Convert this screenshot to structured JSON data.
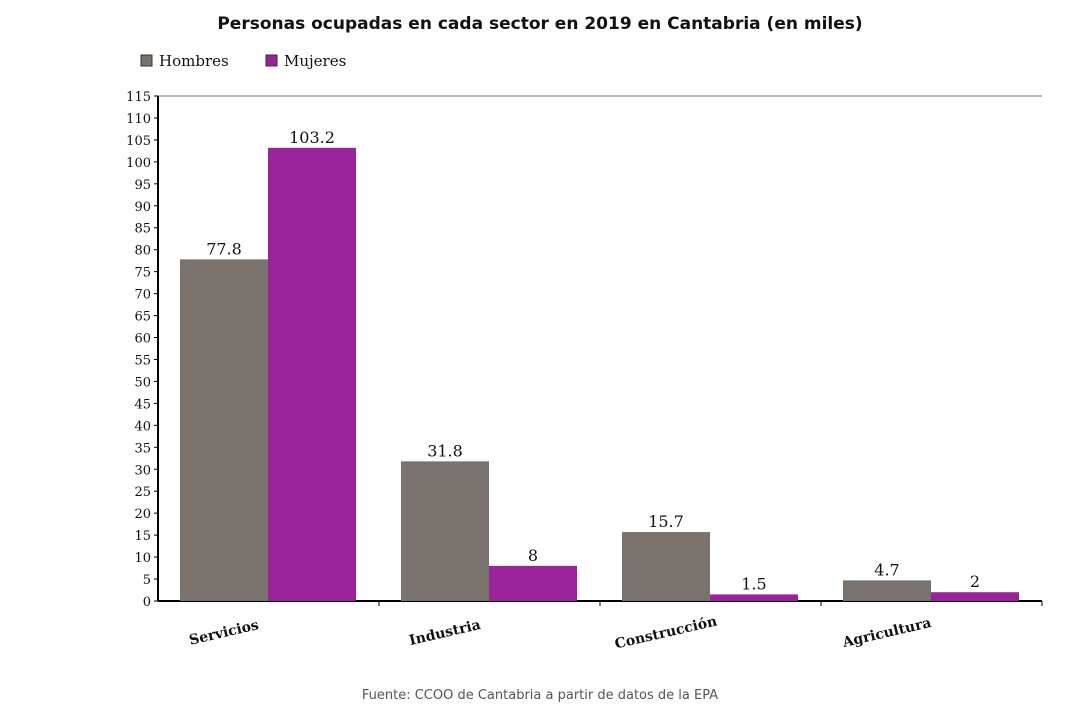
{
  "chart_data": {
    "type": "bar",
    "title": "Personas ocupadas en cada sector en 2019 en Cantabria (en miles)",
    "categories": [
      "Servicios",
      "Industria",
      "Construcción",
      "Agricultura"
    ],
    "series": [
      {
        "name": "Hombres",
        "values": [
          77.8,
          31.8,
          15.7,
          4.7
        ],
        "color": "#7a726c"
      },
      {
        "name": "Mujeres",
        "values": [
          103.2,
          8,
          1.5,
          2
        ],
        "color": "#9b2399"
      }
    ],
    "ylim": [
      0,
      115
    ],
    "yticks": [
      0,
      5,
      10,
      15,
      20,
      25,
      30,
      35,
      40,
      45,
      50,
      55,
      60,
      65,
      70,
      75,
      80,
      85,
      90,
      95,
      100,
      105,
      110,
      115
    ],
    "data_labels": [
      [
        "77.8",
        "31.8",
        "15.7",
        "4.7"
      ],
      [
        "103.2",
        "8",
        "1.5",
        "2"
      ]
    ],
    "legend": "top-left",
    "grid": false,
    "source": "Fuente: CCOO de Cantabria a partir de datos de la EPA"
  }
}
